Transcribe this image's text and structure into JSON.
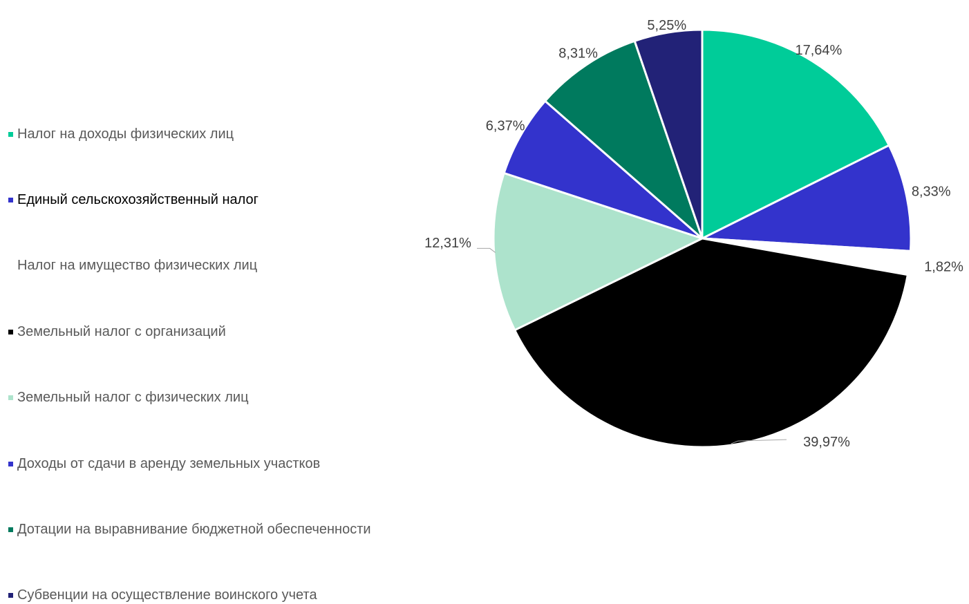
{
  "chart_data": {
    "type": "pie",
    "title": "",
    "legend_position": "left",
    "categories": [
      "Налог на доходы физических лиц",
      "Единый сельскохозяйственный налог",
      "Налог на имущество физических лиц",
      "Земельный налог с организаций",
      "Земельный налог с физических лиц",
      "Доходы от сдачи в аренду земельных участков",
      "Дотации  на выравнивание бюджетной обеспеченности",
      "Субвенции на осуществление воинского учета"
    ],
    "values": [
      17.64,
      8.33,
      1.82,
      39.97,
      12.31,
      6.37,
      8.31,
      5.25
    ],
    "value_labels": [
      "17,64%",
      "8,33%",
      "1,82%",
      "39,97%",
      "12,31%",
      "6,37%",
      "8,31%",
      "5,25%"
    ],
    "colors": [
      "#00CC99",
      "#3333CC",
      "#FFFFFF",
      "#000000",
      "#ADE3CC",
      "#3333CC",
      "#007A5E",
      "#222277"
    ],
    "legend_text_colors": [
      "#595959",
      "#000000",
      "#595959",
      "#595959",
      "#595959",
      "#595959",
      "#595959",
      "#595959"
    ]
  }
}
